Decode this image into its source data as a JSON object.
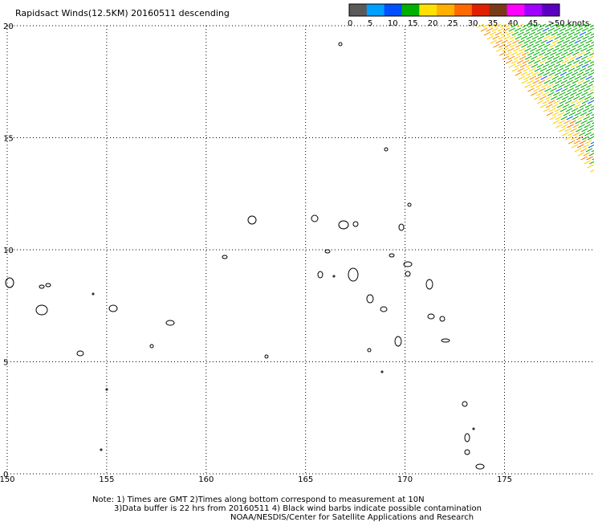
{
  "title": "Rapidsact Winds(12.5KM) 20160511 descending",
  "legend": {
    "colors": [
      "#5a5a5a",
      "#00a0ff",
      "#0050ff",
      "#00b000",
      "#ffe000",
      "#ffb000",
      "#ff6a00",
      "#e02000",
      "#7a3a1a",
      "#ff00ff",
      "#a000ff",
      "#5a00c0"
    ],
    "labels": [
      "0",
      "5",
      "10",
      "15",
      "20",
      "25",
      "30",
      "35",
      "40",
      "45",
      ">50 knots"
    ]
  },
  "notes": [
    "Note: 1) Times are GMT 2)Times along bottom correspond to measurement at 10N",
    "3)Data buffer is 22 hrs from 20160511 4) Black wind barbs indicate possible contamination",
    "NOAA/NESDIS/Center for Satellite Applications and Research"
  ],
  "chart_data": {
    "type": "map",
    "title": "Rapidsact Winds(12.5KM) 20160511 descending",
    "xlim": [
      150,
      179.5
    ],
    "ylim": [
      0,
      20
    ],
    "x_ticks": [
      "150",
      "155",
      "160",
      "165",
      "170",
      "175"
    ],
    "y_ticks": [
      "0",
      "5",
      "10",
      "15",
      "20"
    ],
    "grid": true,
    "grid_style": "dotted",
    "swath": {
      "region": "upper-right",
      "dominant_colors": [
        "green",
        "yellow",
        "orange"
      ]
    }
  }
}
